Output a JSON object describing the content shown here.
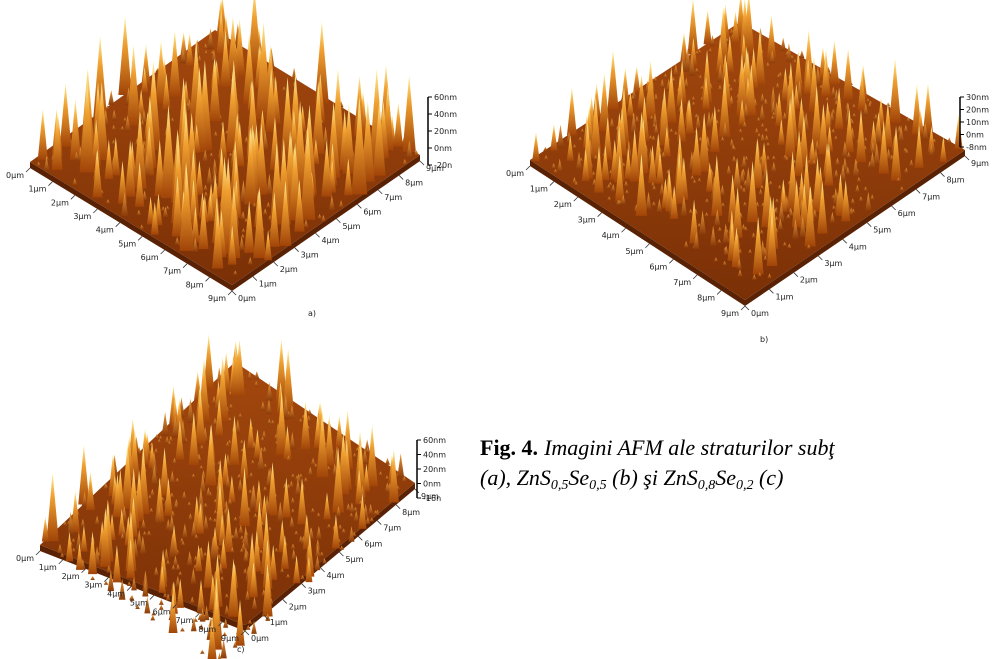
{
  "panels": [
    {
      "label": "a)",
      "scale": [
        "60nm",
        "40nm",
        "20nm",
        "0nm",
        "-20n"
      ],
      "left_axis": [
        "0μm",
        "1μm",
        "2μm",
        "3μm",
        "4μm",
        "5μm",
        "6μm",
        "7μm",
        "8μm",
        "9μm"
      ],
      "right_axis": [
        "0μm",
        "1μm",
        "2μm",
        "3μm",
        "4μm",
        "5μm",
        "6μm",
        "7μm",
        "8μm",
        "9μm"
      ]
    },
    {
      "label": "b)",
      "scale": [
        "30nm",
        "20nm",
        "10nm",
        "0nm",
        "-8nm"
      ],
      "left_axis": [
        "0μm",
        "1μm",
        "2μm",
        "3μm",
        "4μm",
        "5μm",
        "6μm",
        "7μm",
        "8μm",
        "9μm"
      ],
      "right_axis": [
        "0μm",
        "1μm",
        "2μm",
        "3μm",
        "4μm",
        "5μm",
        "6μm",
        "7μm",
        "8μm",
        "9μm"
      ]
    },
    {
      "label": "c)",
      "scale": [
        "60nm",
        "40nm",
        "20nm",
        "0nm",
        "-16n"
      ],
      "left_axis": [
        "0μm",
        "1μm",
        "2μm",
        "3μm",
        "4μm",
        "5μm",
        "6μm",
        "7μm",
        "8μm",
        "9μm"
      ],
      "right_axis": [
        "0μm",
        "1μm",
        "2μm",
        "3μm",
        "4μm",
        "5μm",
        "6μm",
        "7μm",
        "8μm",
        "9μm"
      ]
    }
  ],
  "caption": {
    "lead": "Fig. 4.",
    "line1": "Imagini AFM ale straturilor subţ",
    "line2": [
      "(a), ZnS",
      "0,5",
      "Se",
      "0,5",
      " (b) şi ZnS",
      "0,8",
      "Se",
      "0,2",
      " (c)"
    ]
  }
}
